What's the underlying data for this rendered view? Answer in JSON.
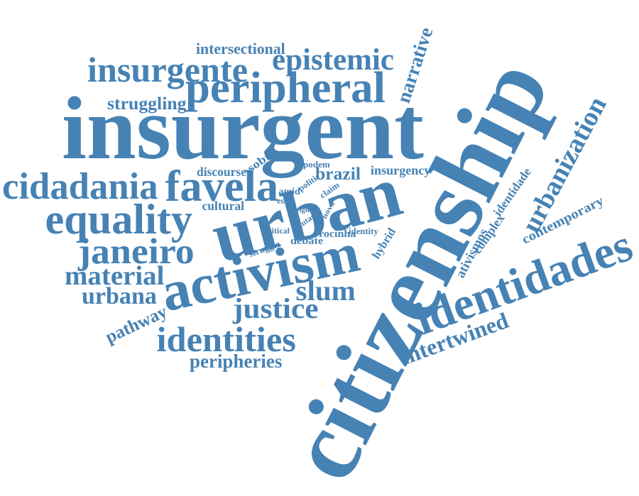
{
  "color": "#4682b4",
  "background": "#ffffff",
  "words": {
    "citizenship": "citizenship",
    "insurgent": "insurgent",
    "urban": "urban",
    "activism": "activism",
    "peripheral": "peripheral",
    "identidades": "identidades",
    "urbanization": "urbanization",
    "insurgente": "insurgente",
    "epistemic": "epistemic",
    "cidadania": "cidadania",
    "favela": "favela",
    "equality": "equality",
    "janeiro": "janeiro",
    "identities": "identities",
    "narrative": "narrative",
    "material": "material",
    "justice": "justice",
    "slum": "slum",
    "urbana": "urbana",
    "intertwined": "intertwined",
    "peripheries": "peripheries",
    "struggling": "struggling",
    "intersectional": "intersectional",
    "brazil": "brazil",
    "pathway": "pathway",
    "contemporary": "contemporary",
    "ativismos": "ativismos",
    "complex": "complex",
    "identidade": "identidade",
    "insurgency": "insurgency",
    "discourse": "discourse",
    "cultural": "cultural",
    "sobre": "sobre",
    "hybrid": "hybrid",
    "rocinha": "rocinha",
    "identity": "identity",
    "debate": "debate",
    "critical": "critical",
    "struggle": "struggle",
    "podem": "podem",
    "politic": "politic",
    "claim": "claim",
    "amid": "amid",
    "essas": "essas",
    "right": "right",
    "novo": "novo",
    "lutas": "lutas"
  }
}
